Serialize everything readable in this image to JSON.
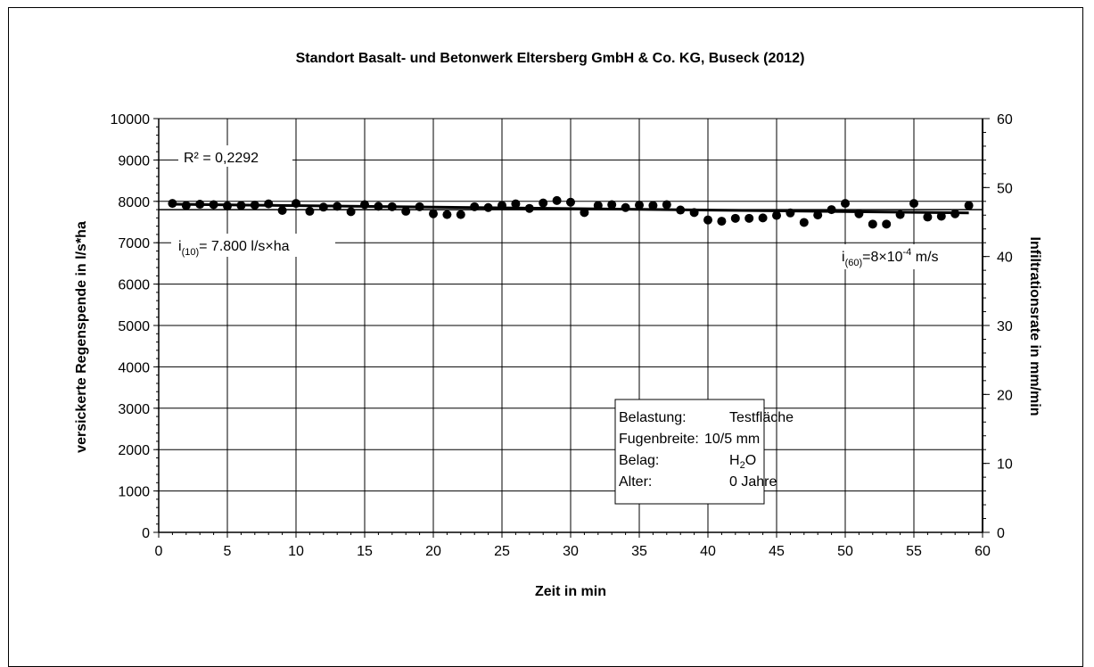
{
  "chart_data": {
    "type": "scatter",
    "title": "Standort Basalt- und Betonwerk Eltersberg GmbH & Co. KG, Buseck (2012)",
    "xlabel": "Zeit in min",
    "ylabel": "versickerte Regenspende in l/s*ha",
    "y2label": "Infiltrationsrate in mm/min",
    "xlim": [
      0,
      60
    ],
    "ylim": [
      0,
      10000
    ],
    "y2lim": [
      0,
      60
    ],
    "xticks": [
      "0",
      "5",
      "10",
      "15",
      "20",
      "25",
      "30",
      "35",
      "40",
      "45",
      "50",
      "55",
      "60"
    ],
    "yticks": [
      "0",
      "1000",
      "2000",
      "3000",
      "4000",
      "5000",
      "6000",
      "7000",
      "8000",
      "9000",
      "10000"
    ],
    "y2ticks": [
      "0",
      "10",
      "20",
      "30",
      "40",
      "50",
      "60"
    ],
    "grid": true,
    "series": [
      {
        "marker": "circle",
        "color": "#000000",
        "x": [
          1,
          2,
          3,
          4,
          5,
          6,
          7,
          8,
          9,
          10,
          11,
          12,
          13,
          14,
          15,
          16,
          17,
          18,
          19,
          20,
          21,
          22,
          23,
          24,
          25,
          26,
          27,
          28,
          29,
          30,
          31,
          32,
          33,
          34,
          35,
          36,
          37,
          38,
          39,
          40,
          41,
          42,
          43,
          44,
          45,
          46,
          47,
          48,
          49,
          50,
          51,
          52,
          53,
          54,
          55,
          56,
          57,
          58,
          59
        ],
        "y": [
          7950,
          7900,
          7930,
          7920,
          7890,
          7900,
          7910,
          7940,
          7780,
          7950,
          7760,
          7860,
          7880,
          7750,
          7920,
          7880,
          7870,
          7760,
          7870,
          7700,
          7680,
          7680,
          7870,
          7850,
          7900,
          7940,
          7830,
          7960,
          8020,
          7980,
          7730,
          7900,
          7920,
          7850,
          7910,
          7900,
          7920,
          7790,
          7730,
          7550,
          7520,
          7590,
          7590,
          7600,
          7660,
          7720,
          7490,
          7670,
          7800,
          7950,
          7700,
          7450,
          7450,
          7680,
          7950,
          7620,
          7640,
          7700,
          7900
        ]
      }
    ],
    "trendline": {
      "type": "linear",
      "x": [
        1,
        59
      ],
      "y": [
        7930,
        7720
      ],
      "label": "R² = 0,2292"
    },
    "reference_line": {
      "y": 7800,
      "label_main": "i",
      "label_sub": "(10)",
      "label_rest": "= 7.800 l/s×ha"
    },
    "annotation_right": {
      "label_main": "i",
      "label_sub": "(60)",
      "label_mid": "=8×10",
      "label_sup": "-4",
      "label_rest": " m/s"
    },
    "info_box": {
      "rows": [
        {
          "key": "Belastung:",
          "value": "Testfläche"
        },
        {
          "key": "Fugenbreite:",
          "value": "10/5 mm"
        },
        {
          "key": "Belag:",
          "value": "H",
          "value_sub": "2",
          "value_rest": "O"
        },
        {
          "key": "Alter:",
          "value": "0 Jahre"
        }
      ]
    }
  }
}
